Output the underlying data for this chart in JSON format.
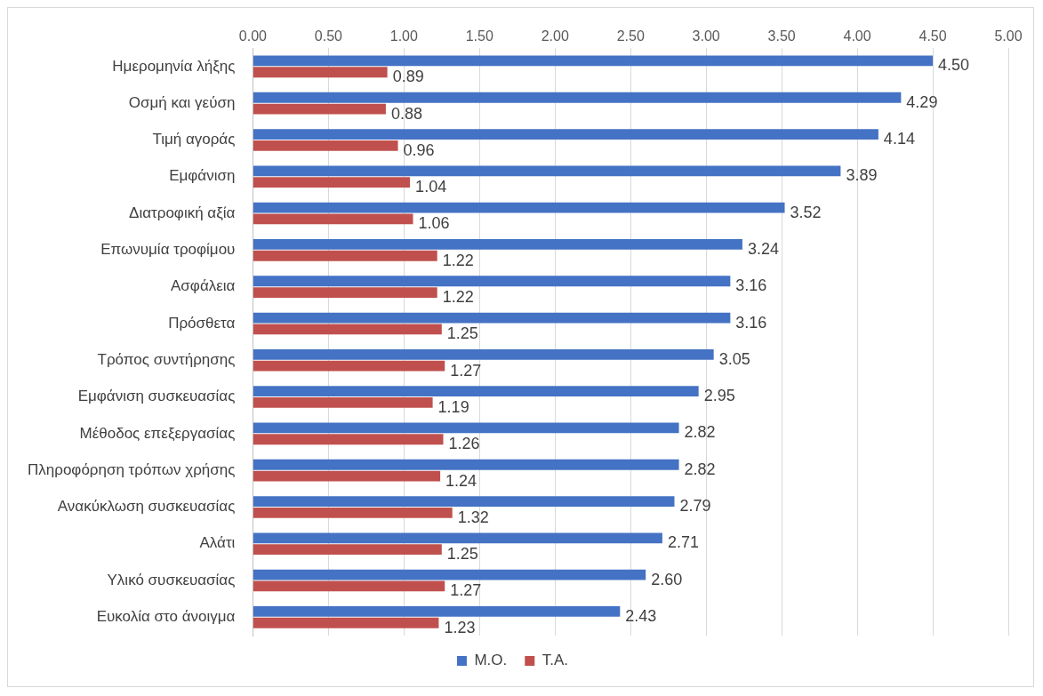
{
  "chart_data": {
    "type": "bar",
    "orientation": "horizontal",
    "categories": [
      "Ημερομηνία λήξης",
      "Οσμή και γεύση",
      "Τιμή αγοράς",
      "Εμφάνιση",
      "Διατροφική αξία",
      "Επωνυμία τροφίμου",
      "Ασφάλεια",
      "Πρόσθετα",
      "Τρόπος συντήρησης",
      "Εμφάνιση συσκευασίας",
      "Μέθοδος επεξεργασίας",
      "Πληροφόρηση τρόπων χρήσης",
      "Ανακύκλωση συσκευασίας",
      "Αλάτι",
      "Υλικό συσκευασίας",
      "Ευκολία στο άνοιγμα"
    ],
    "series": [
      {
        "name": "Μ.Ο.",
        "color": "#4472c4",
        "values": [
          4.5,
          4.29,
          4.14,
          3.89,
          3.52,
          3.24,
          3.16,
          3.16,
          3.05,
          2.95,
          2.82,
          2.82,
          2.79,
          2.71,
          2.6,
          2.43
        ],
        "value_labels": [
          "4.50",
          "4.29",
          "4.14",
          "3.89",
          "3.52",
          "3.24",
          "3.16",
          "3.16",
          "3.05",
          "2.95",
          "2.82",
          "2.82",
          "2.79",
          "2.71",
          "2.60",
          "2.43"
        ]
      },
      {
        "name": "Τ.Α.",
        "color": "#c0504d",
        "values": [
          0.89,
          0.88,
          0.96,
          1.04,
          1.06,
          1.22,
          1.22,
          1.25,
          1.27,
          1.19,
          1.26,
          1.24,
          1.32,
          1.25,
          1.27,
          1.23
        ],
        "value_labels": [
          "0.89",
          "0.88",
          "0.96",
          "1.04",
          "1.06",
          "1.22",
          "1.22",
          "1.25",
          "1.27",
          "1.19",
          "1.26",
          "1.24",
          "1.32",
          "1.25",
          "1.27",
          "1.23"
        ]
      }
    ],
    "xlim": [
      0,
      5
    ],
    "xticks": [
      {
        "value": 0,
        "label": "0.00"
      },
      {
        "value": 0.5,
        "label": "0.50"
      },
      {
        "value": 1,
        "label": "1.00"
      },
      {
        "value": 1.5,
        "label": "1.50"
      },
      {
        "value": 2,
        "label": "2.00"
      },
      {
        "value": 2.5,
        "label": "2.50"
      },
      {
        "value": 3,
        "label": "3.00"
      },
      {
        "value": 3.5,
        "label": "3.50"
      },
      {
        "value": 4,
        "label": "4.00"
      },
      {
        "value": 4.5,
        "label": "4.50"
      },
      {
        "value": 5,
        "label": "5.00"
      }
    ],
    "grid": "x",
    "legend": "bottom"
  }
}
